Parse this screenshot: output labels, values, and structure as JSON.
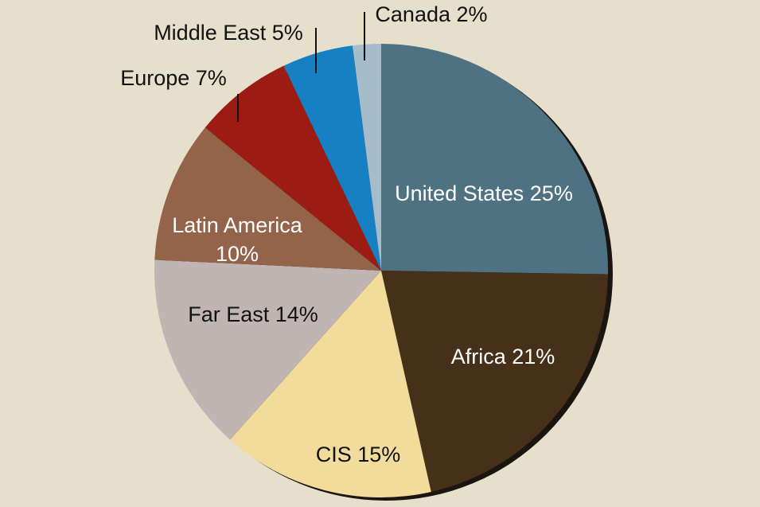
{
  "chart_data": {
    "type": "pie",
    "categories": [
      "United States",
      "Africa",
      "CIS",
      "Far East",
      "Latin America",
      "Europe",
      "Middle East",
      "Canada"
    ],
    "values": [
      25,
      21,
      15,
      14,
      10,
      7,
      5,
      2
    ],
    "value_labels": [
      "25%",
      "21%",
      "15%",
      "14%",
      "10%",
      "7%",
      "5%",
      "2%"
    ],
    "colors": [
      "#4f7282",
      "#46301a",
      "#f1dc9c",
      "#c1b5b4",
      "#93634a",
      "#9c1c14",
      "#1680c3",
      "#a5bccb"
    ]
  }
}
